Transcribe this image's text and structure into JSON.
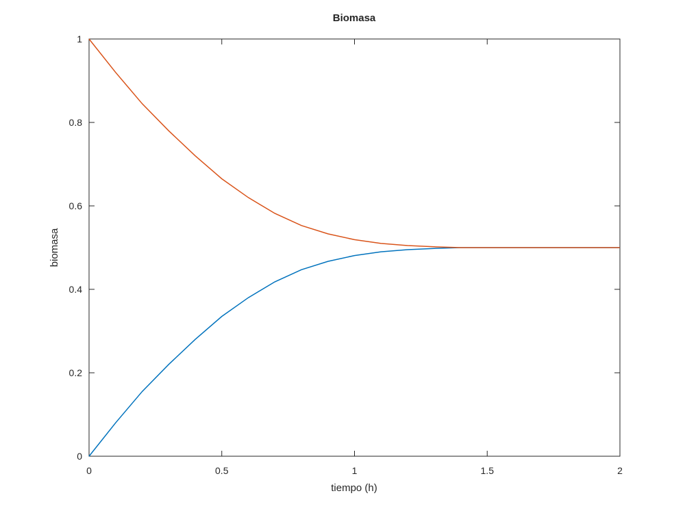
{
  "chart_data": {
    "type": "line",
    "title": "Biomasa",
    "x_label": "tiempo (h)",
    "y_label": "biomasa",
    "x": [
      0,
      0.1,
      0.2,
      0.3,
      0.4,
      0.5,
      0.6,
      0.7,
      0.8,
      0.9,
      1,
      1.1,
      1.2,
      1.3,
      1.4,
      1.5,
      1.6,
      1.7,
      1.8,
      1.9,
      2
    ],
    "series": [
      {
        "color": "#0072bd",
        "values": [
          0,
          0.08,
          0.155,
          0.22,
          0.28,
          0.335,
          0.38,
          0.418,
          0.447,
          0.467,
          0.481,
          0.49,
          0.495,
          0.498,
          0.5,
          0.5,
          0.5,
          0.5,
          0.5,
          0.5,
          0.5
        ]
      },
      {
        "color": "#d95319",
        "values": [
          1,
          0.92,
          0.845,
          0.78,
          0.72,
          0.665,
          0.62,
          0.582,
          0.553,
          0.533,
          0.519,
          0.51,
          0.505,
          0.502,
          0.5,
          0.5,
          0.5,
          0.5,
          0.5,
          0.5,
          0.5
        ]
      }
    ],
    "xlim": [
      0,
      2
    ],
    "ylim": [
      0,
      1
    ],
    "xticks": [
      0,
      0.5,
      1,
      1.5,
      2
    ],
    "yticks": [
      0,
      0.2,
      0.4,
      0.6,
      0.8,
      1
    ],
    "grid": false
  }
}
